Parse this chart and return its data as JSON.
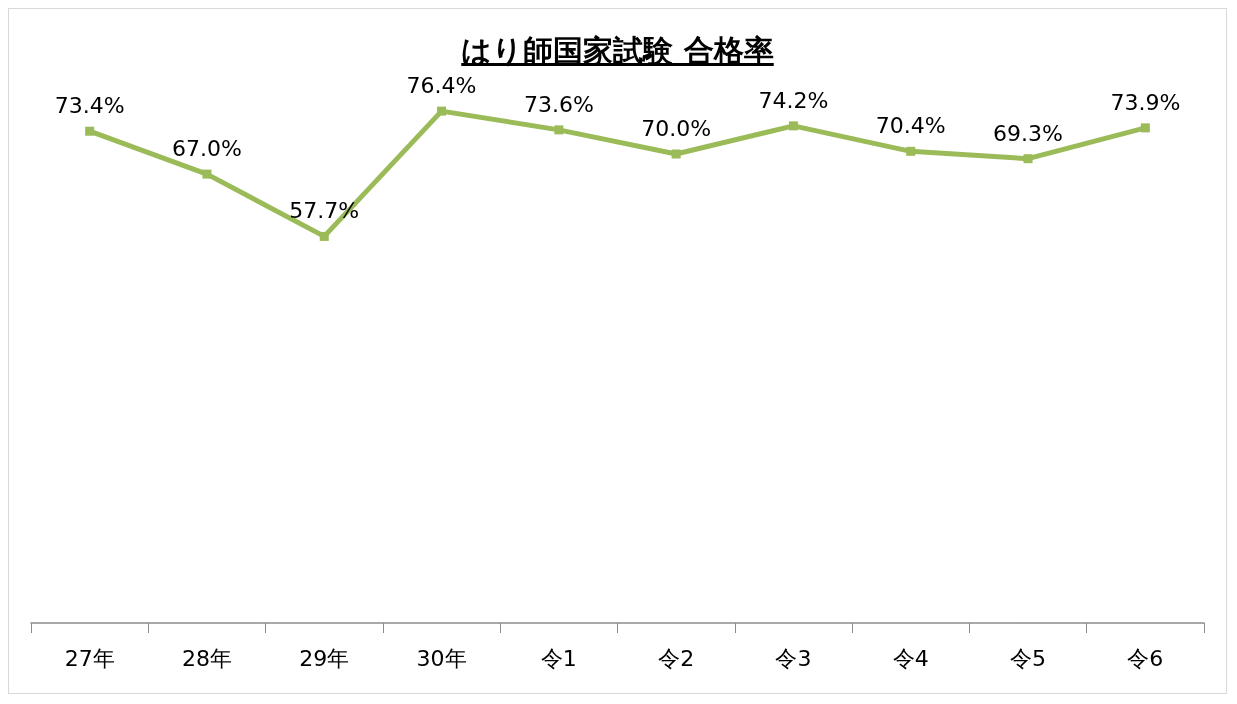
{
  "chart_data": {
    "type": "line",
    "title": "はり師国家試験 合格率",
    "categories": [
      "27年",
      "28年",
      "29年",
      "30年",
      "令1",
      "令2",
      "令3",
      "令4",
      "令5",
      "令6"
    ],
    "series": [
      {
        "color": "#9bbb59",
        "values": [
          73.4,
          67.0,
          57.7,
          76.4,
          73.6,
          70.0,
          74.2,
          70.4,
          69.3,
          73.9
        ],
        "value_labels": [
          "73.4%",
          "67.0%",
          "57.7%",
          "76.4%",
          "73.6%",
          "70.0%",
          "74.2%",
          "70.4%",
          "69.3%",
          "73.9%"
        ]
      }
    ],
    "marker": "square",
    "line_style": "solid",
    "grid": false,
    "tick_labels": "x"
  }
}
